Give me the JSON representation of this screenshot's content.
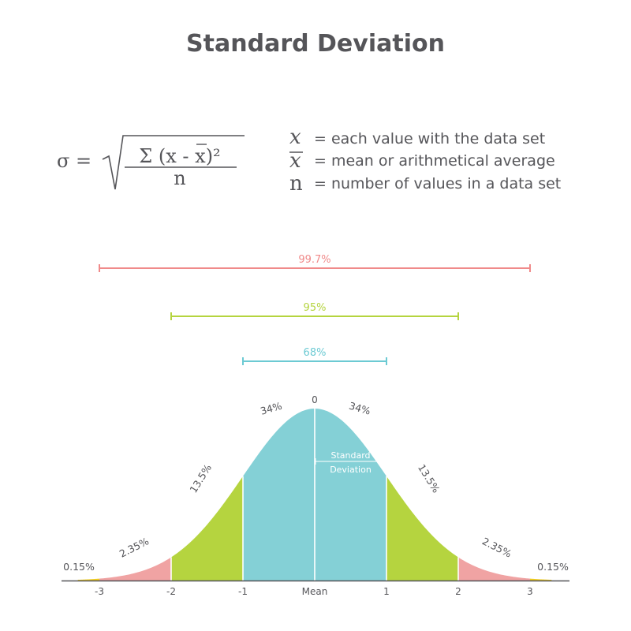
{
  "header": {
    "title": "Standard Deviation"
  },
  "formula": {
    "lhs": "σ =",
    "numerator": "Σ (x - x)²",
    "denominator": "n"
  },
  "legend": [
    {
      "symbol": "x",
      "overbar": false,
      "text": "= each value with the data set"
    },
    {
      "symbol": "x",
      "overbar": true,
      "text": "= mean or arithmetical average"
    },
    {
      "symbol": "n",
      "overbar": false,
      "text": "= number of values in a data set"
    }
  ],
  "colors": {
    "text": "#555559",
    "band_1sd": "#84d0d6",
    "band_2sd": "#b5d43f",
    "band_3sd": "#f0a3a3",
    "band_tail": "#f3cf1f",
    "range_997": "#f08a8a",
    "range_95": "#b5d43f",
    "range_68": "#6ccad3"
  },
  "chart_data": {
    "type": "area",
    "title": "Standard Deviation",
    "distribution": "normal",
    "mean": 0,
    "sd": 1,
    "xlim": [
      -3.3,
      3.3
    ],
    "x_ticks": [
      {
        "value": -3,
        "label": "-3"
      },
      {
        "value": -2,
        "label": "-2"
      },
      {
        "value": -1,
        "label": "-1"
      },
      {
        "value": 0,
        "label": "Mean"
      },
      {
        "value": 1,
        "label": "1"
      },
      {
        "value": 2,
        "label": "2"
      },
      {
        "value": 3,
        "label": "3"
      }
    ],
    "peak_label": "0",
    "regions": [
      {
        "from": -3.3,
        "to": -3,
        "percent": "0.15%",
        "color": "#f3cf1f"
      },
      {
        "from": -3,
        "to": -2,
        "percent": "2.35%",
        "color": "#f0a3a3"
      },
      {
        "from": -2,
        "to": -1,
        "percent": "13.5%",
        "color": "#b5d43f"
      },
      {
        "from": -1,
        "to": 0,
        "percent": "34%",
        "color": "#84d0d6"
      },
      {
        "from": 0,
        "to": 1,
        "percent": "34%",
        "color": "#84d0d6"
      },
      {
        "from": 1,
        "to": 2,
        "percent": "13.5%",
        "color": "#b5d43f"
      },
      {
        "from": 2,
        "to": 3,
        "percent": "2.35%",
        "color": "#f0a3a3"
      },
      {
        "from": 3,
        "to": 3.3,
        "percent": "0.15%",
        "color": "#f3cf1f"
      }
    ],
    "ranges": [
      {
        "label": "99.7%",
        "from": -3,
        "to": 3,
        "color": "#f08a8a"
      },
      {
        "label": "95%",
        "from": -2,
        "to": 2,
        "color": "#b5d43f"
      },
      {
        "label": "68%",
        "from": -1,
        "to": 1,
        "color": "#6ccad3"
      }
    ],
    "sd_annotation": {
      "text1": "Standard",
      "text2": "Deviation",
      "from": 0,
      "to": 1
    }
  }
}
